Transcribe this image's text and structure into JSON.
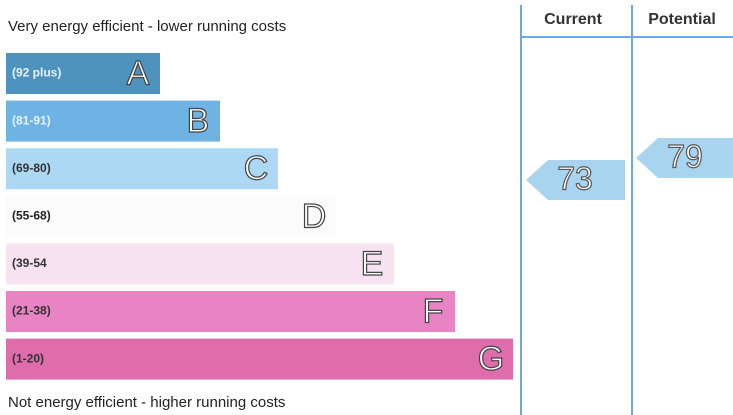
{
  "header": {
    "top_note": "Very energy efficient - lower running costs",
    "bottom_note": "Not energy efficient - higher running costs",
    "current_label": "Current",
    "potential_label": "Potential"
  },
  "bands": [
    {
      "range": "(92 plus)",
      "letter": "A"
    },
    {
      "range": "(81-91)",
      "letter": "B"
    },
    {
      "range": "(69-80)",
      "letter": "C"
    },
    {
      "range": "(55-68)",
      "letter": "D"
    },
    {
      "range": "(39-54",
      "letter": "E"
    },
    {
      "range": "(21-38)",
      "letter": "F"
    },
    {
      "range": "(1-20)",
      "letter": "G"
    }
  ],
  "ratings": {
    "current": "73",
    "potential": "79"
  }
}
